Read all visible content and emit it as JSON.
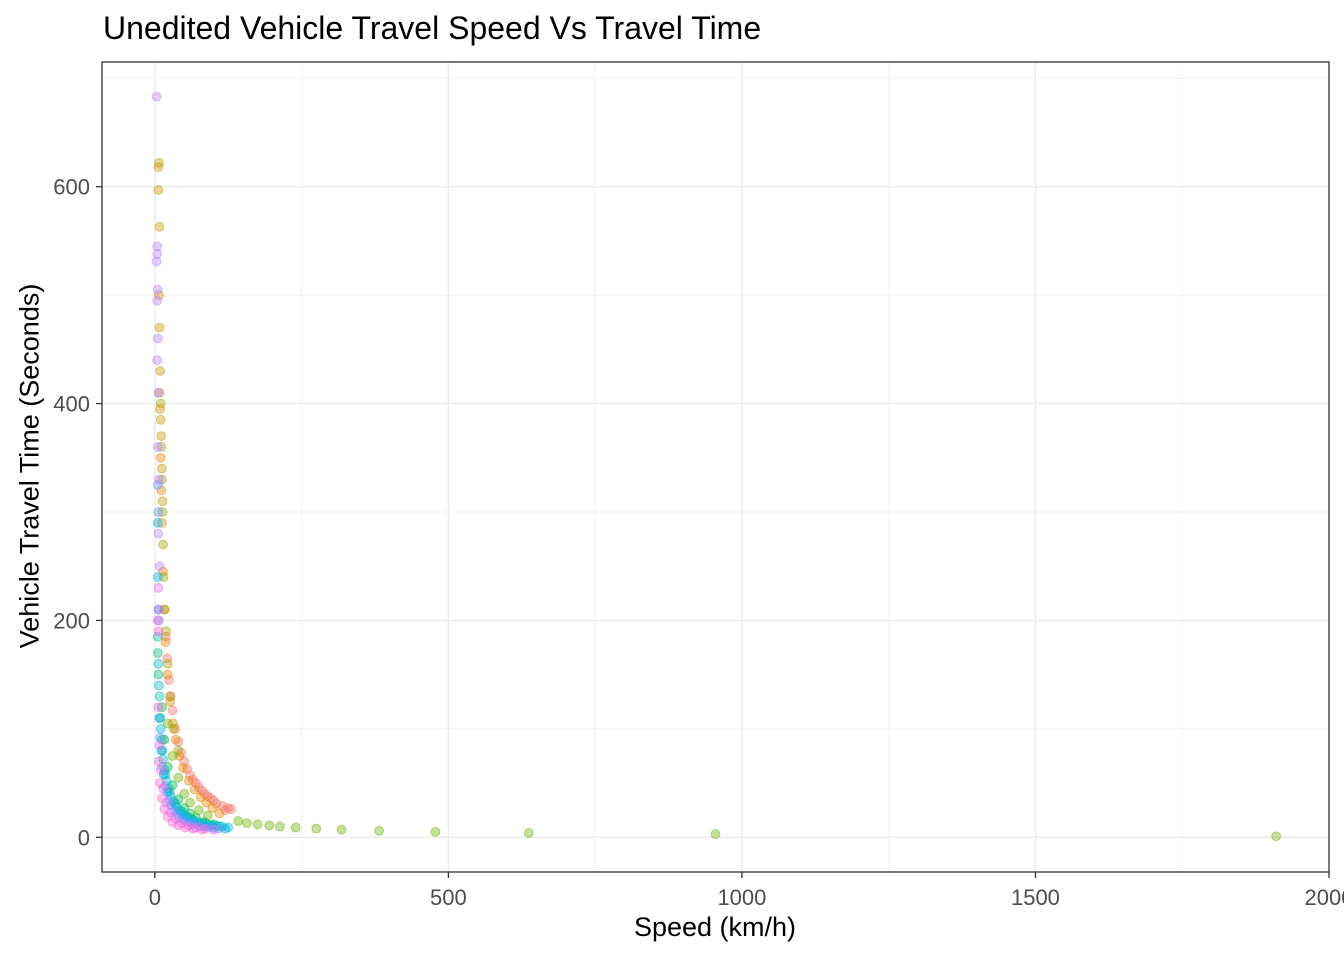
{
  "chart_data": {
    "type": "scatter",
    "title": "Unedited Vehicle Travel Speed Vs Travel Time",
    "xlabel": "Speed (km/h)",
    "ylabel": "Vehicle Travel Time (Seconds)",
    "xlim": [
      -90,
      2000
    ],
    "ylim": [
      -32,
      715
    ],
    "x_ticks": [
      0,
      500,
      1000,
      1500,
      2000
    ],
    "x_tick_labels": [
      "0",
      "500",
      "1000",
      "1500",
      "2000"
    ],
    "y_ticks": [
      0,
      200,
      400,
      600
    ],
    "y_tick_labels": [
      "0",
      "200",
      "400",
      "600"
    ],
    "grid": true,
    "legend": "none",
    "point_alpha": 0.4,
    "palette": [
      "#F8766D",
      "#E58700",
      "#C99800",
      "#A3A500",
      "#6BB100",
      "#00BA38",
      "#00BF7D",
      "#00C0AF",
      "#00BCD8",
      "#00B0F6",
      "#619CFF",
      "#B983FF",
      "#E76BF3",
      "#FD61D1"
    ],
    "series": [
      {
        "color": "#F8766D",
        "points": [
          [
            125,
            27
          ],
          [
            115,
            29
          ],
          [
            100,
            34
          ],
          [
            90,
            38
          ],
          [
            80,
            43
          ],
          [
            70,
            50
          ],
          [
            60,
            57
          ],
          [
            50,
            70
          ],
          [
            45,
            78
          ],
          [
            40,
            88
          ],
          [
            35,
            100
          ],
          [
            30,
            117
          ],
          [
            27,
            130
          ],
          [
            24,
            145
          ],
          [
            21,
            165
          ],
          [
            19,
            185
          ],
          [
            120,
            25
          ],
          [
            105,
            31
          ],
          [
            95,
            36
          ],
          [
            85,
            40
          ],
          [
            75,
            46
          ],
          [
            65,
            53
          ],
          [
            55,
            63
          ],
          [
            130,
            26
          ]
        ]
      },
      {
        "color": "#E58700",
        "points": [
          [
            110,
            22
          ],
          [
            98,
            27
          ],
          [
            88,
            32
          ],
          [
            78,
            37
          ],
          [
            68,
            44
          ],
          [
            58,
            52
          ],
          [
            48,
            64
          ],
          [
            42,
            75
          ],
          [
            36,
            90
          ],
          [
            31,
            105
          ],
          [
            26,
            125
          ],
          [
            22,
            150
          ],
          [
            18,
            180
          ],
          [
            16,
            210
          ],
          [
            14,
            245
          ],
          [
            12,
            290
          ],
          [
            11,
            320
          ],
          [
            10,
            350
          ]
        ]
      },
      {
        "color": "#C99800",
        "points": [
          [
            7,
            622
          ],
          [
            6,
            618
          ],
          [
            6,
            597
          ],
          [
            8,
            563
          ],
          [
            7,
            500
          ],
          [
            8,
            470
          ],
          [
            9,
            430
          ],
          [
            8,
            410
          ],
          [
            9,
            395
          ],
          [
            10,
            385
          ],
          [
            11,
            370
          ],
          [
            12,
            340
          ],
          [
            13,
            310
          ]
        ]
      },
      {
        "color": "#A3A500",
        "points": [
          [
            10,
            400
          ],
          [
            11,
            360
          ],
          [
            12,
            330
          ],
          [
            13,
            300
          ],
          [
            14,
            270
          ],
          [
            15,
            240
          ],
          [
            17,
            210
          ],
          [
            19,
            190
          ],
          [
            22,
            160
          ],
          [
            26,
            130
          ],
          [
            32,
            100
          ],
          [
            40,
            80
          ]
        ]
      },
      {
        "color": "#6BB100",
        "points": [
          [
            142,
            15
          ],
          [
            157,
            13
          ],
          [
            175,
            12
          ],
          [
            195,
            11
          ],
          [
            213,
            10
          ],
          [
            240,
            9
          ],
          [
            275,
            8
          ],
          [
            318,
            7
          ],
          [
            382,
            6
          ],
          [
            478,
            5
          ],
          [
            637,
            4
          ],
          [
            955,
            3
          ],
          [
            1910,
            1
          ],
          [
            90,
            20
          ],
          [
            75,
            25
          ],
          [
            60,
            32
          ],
          [
            50,
            40
          ],
          [
            40,
            55
          ],
          [
            30,
            75
          ],
          [
            22,
            105
          ]
        ]
      },
      {
        "color": "#00BA38",
        "points": [
          [
            100,
            12
          ],
          [
            85,
            14
          ],
          [
            70,
            18
          ],
          [
            60,
            22
          ],
          [
            50,
            27
          ],
          [
            40,
            35
          ],
          [
            30,
            48
          ],
          [
            22,
            65
          ],
          [
            16,
            90
          ],
          [
            12,
            120
          ]
        ]
      },
      {
        "color": "#00BF7D",
        "points": [
          [
            95,
            11
          ],
          [
            80,
            13
          ],
          [
            65,
            16
          ],
          [
            55,
            19
          ],
          [
            45,
            24
          ],
          [
            35,
            31
          ],
          [
            25,
            42
          ],
          [
            18,
            58
          ],
          [
            13,
            80
          ],
          [
            9,
            110
          ],
          [
            6,
            150
          ],
          [
            5,
            170
          ]
        ]
      },
      {
        "color": "#00C0AF",
        "points": [
          [
            115,
            10
          ],
          [
            105,
            11
          ],
          [
            90,
            12
          ],
          [
            75,
            14
          ],
          [
            62,
            17
          ],
          [
            52,
            20
          ],
          [
            42,
            25
          ],
          [
            32,
            33
          ],
          [
            24,
            45
          ],
          [
            17,
            62
          ],
          [
            12,
            90
          ],
          [
            8,
            130
          ],
          [
            5,
            185
          ]
        ]
      },
      {
        "color": "#00BCD8",
        "points": [
          [
            125,
            9
          ],
          [
            110,
            10
          ],
          [
            97,
            11
          ],
          [
            82,
            13
          ],
          [
            67,
            15
          ],
          [
            57,
            18
          ],
          [
            47,
            22
          ],
          [
            37,
            28
          ],
          [
            27,
            38
          ],
          [
            20,
            52
          ],
          [
            14,
            72
          ],
          [
            10,
            100
          ],
          [
            7,
            140
          ],
          [
            6,
            160
          ]
        ]
      },
      {
        "color": "#00B0F6",
        "points": [
          [
            120,
            8
          ],
          [
            100,
            9
          ],
          [
            85,
            10
          ],
          [
            72,
            12
          ],
          [
            60,
            14
          ],
          [
            48,
            17
          ],
          [
            38,
            22
          ],
          [
            28,
            30
          ],
          [
            21,
            42
          ],
          [
            15,
            58
          ],
          [
            11,
            80
          ],
          [
            8,
            110
          ],
          [
            6,
            210
          ],
          [
            5,
            240
          ],
          [
            5,
            290
          ]
        ]
      },
      {
        "color": "#619CFF",
        "points": [
          [
            108,
            8
          ],
          [
            92,
            9
          ],
          [
            78,
            10
          ],
          [
            64,
            12
          ],
          [
            52,
            15
          ],
          [
            42,
            19
          ],
          [
            33,
            25
          ],
          [
            25,
            34
          ],
          [
            18,
            47
          ],
          [
            13,
            65
          ],
          [
            9,
            92
          ],
          [
            7,
            200
          ],
          [
            6,
            300
          ],
          [
            5,
            325
          ]
        ]
      },
      {
        "color": "#B983FF",
        "points": [
          [
            3,
            683
          ],
          [
            4,
            545
          ],
          [
            4,
            538
          ],
          [
            3,
            531
          ],
          [
            5,
            505
          ],
          [
            4,
            495
          ],
          [
            5,
            460
          ],
          [
            4,
            440
          ],
          [
            6,
            410
          ],
          [
            5,
            360
          ],
          [
            7,
            330
          ],
          [
            6,
            280
          ],
          [
            8,
            250
          ]
        ]
      },
      {
        "color": "#E76BF3",
        "points": [
          [
            100,
            7
          ],
          [
            85,
            8
          ],
          [
            70,
            9
          ],
          [
            58,
            11
          ],
          [
            46,
            13
          ],
          [
            36,
            17
          ],
          [
            27,
            23
          ],
          [
            20,
            32
          ],
          [
            14,
            45
          ],
          [
            10,
            62
          ],
          [
            8,
            85
          ],
          [
            6,
            120
          ],
          [
            6,
            230
          ],
          [
            7,
            210
          ]
        ]
      },
      {
        "color": "#FD61D1",
        "points": [
          [
            80,
            7
          ],
          [
            65,
            8
          ],
          [
            52,
            9
          ],
          [
            40,
            11
          ],
          [
            30,
            14
          ],
          [
            22,
            19
          ],
          [
            16,
            26
          ],
          [
            12,
            36
          ],
          [
            9,
            50
          ],
          [
            7,
            70
          ],
          [
            5,
            200
          ],
          [
            6,
            190
          ]
        ]
      }
    ]
  }
}
